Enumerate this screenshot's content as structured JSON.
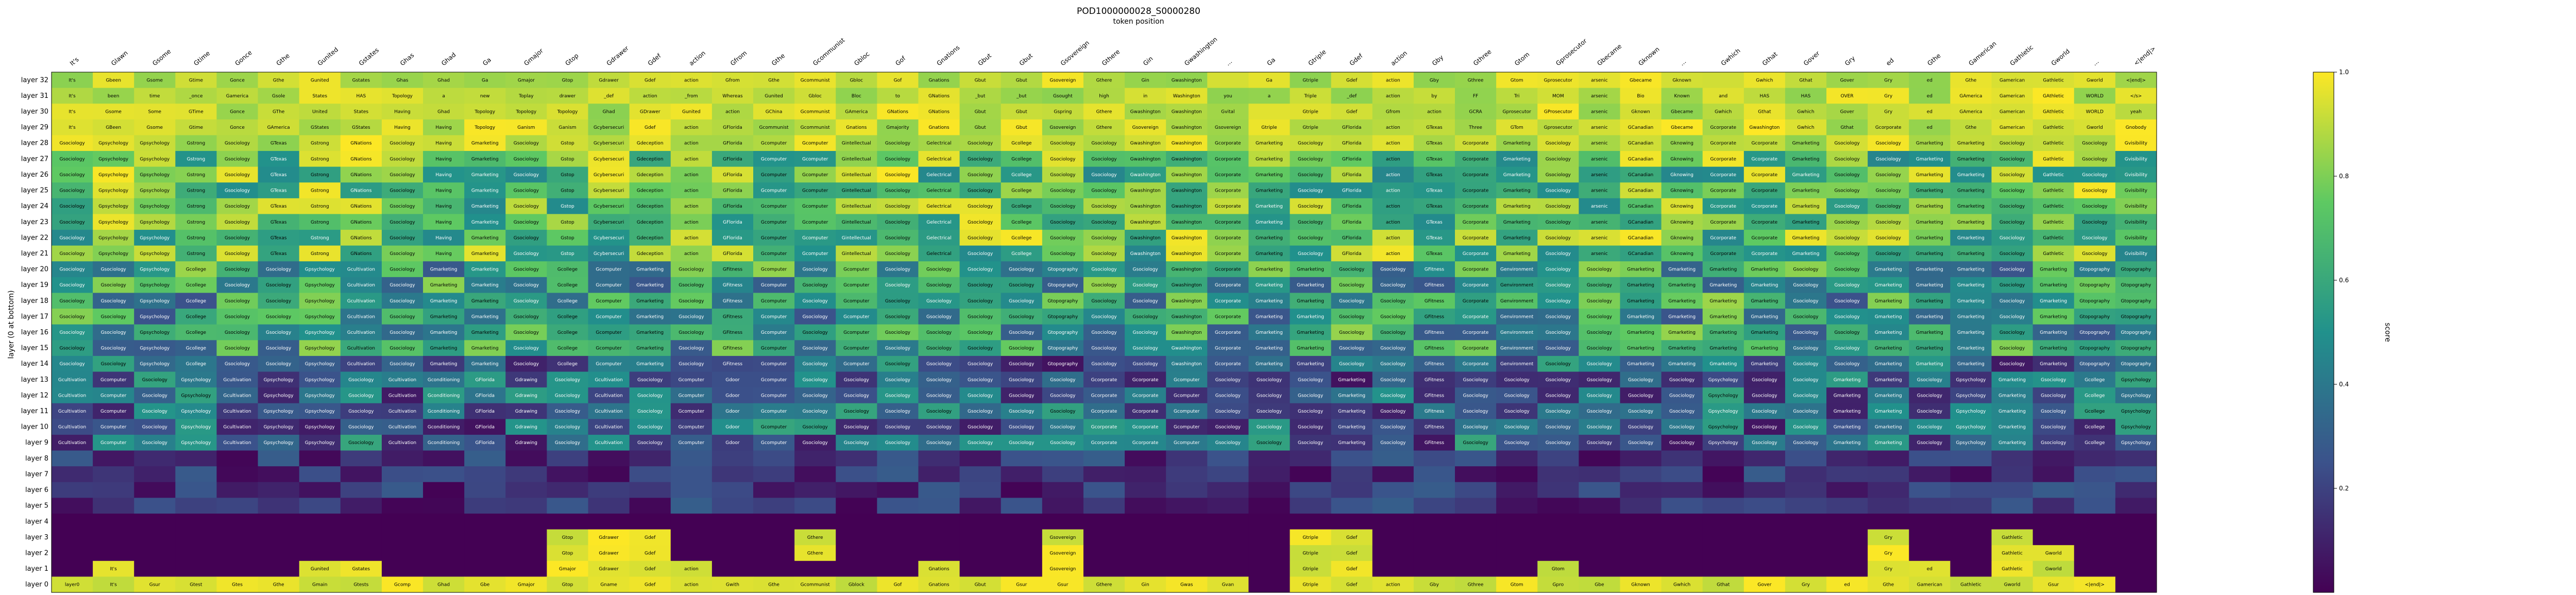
{
  "chart_data": {
    "type": "heatmap",
    "title": "POD1000000028_S0000280",
    "xlabel": "token position",
    "ylabel": "layer (0 at bottom)",
    "colorbar_label": "score",
    "colormap": "viridis",
    "vmin": 0.0,
    "vmax": 1.0,
    "colorbar_ticks": [
      "0.2",
      "0.4",
      "0.6",
      "0.8",
      "1.0"
    ],
    "tokens": [
      "It's",
      "Glawn",
      "Gsome",
      "Gtime",
      "Gonce",
      "Gthe",
      "Gunited",
      "Gstates",
      "Ghas",
      "Ghad",
      "Ga",
      "Gmajor",
      "Gtop",
      "Gdrawer",
      "Gdef",
      "action",
      "Gfrom",
      "Gthe",
      "Gcommunist",
      "Gbloc",
      "Gof",
      "Gnations",
      "Gbut",
      "Gbut",
      "Gsovereign",
      "Gthere",
      "Gin",
      "Gwashington",
      "...",
      "Ga",
      "Gtriple",
      "Gdef",
      "action",
      "Gby",
      "Gthree",
      "Gtom",
      "Gprosecutor",
      "Gbecame",
      "Gknown",
      "...",
      "Gwhich",
      "Gthat",
      "Gover",
      "Gry",
      "ed",
      "Gthe",
      "Gamerican",
      "Gathletic",
      "Gworld",
      "...",
      "<|end|>"
    ],
    "layers": [
      "layer 32",
      "layer 31",
      "layer 30",
      "layer 29",
      "layer 28",
      "layer 27",
      "layer 26",
      "layer 25",
      "layer 24",
      "layer 23",
      "layer 22",
      "layer 21",
      "layer 20",
      "layer 19",
      "layer 18",
      "layer 17",
      "layer 16",
      "layer 15",
      "layer 14",
      "layer 13",
      "layer 12",
      "layer 11",
      "layer 10",
      "layer 9",
      "layer 8",
      "layer 7",
      "layer 6",
      "layer 5",
      "layer 4",
      "layer 3",
      "layer 2",
      "layer 1",
      "layer 0"
    ],
    "top_rows": [
      [
        "It's",
        "Gbeen",
        "Gsome",
        "Gtime",
        "Gonce",
        "Gthe",
        "Gunited",
        "Gstates",
        "Ghas",
        "Ghad",
        "Ga",
        "Gmajor",
        "Gtop",
        "Gdrawer",
        "Gdef",
        "action",
        "Gfrom",
        "Gthe",
        "Gcommunist",
        "Gbloc",
        "Gof",
        "Gnations",
        "Gbut",
        "Gbut",
        "Gsovereign",
        "Gthere",
        "Gin",
        "Gwashington",
        "",
        "Ga",
        "Gtriple",
        "Gdef",
        "action",
        "Gby",
        "Gthree",
        "Gtom",
        "Gprosecutor",
        "arsenic",
        "Gbecame",
        "Gknown",
        "",
        "Gwhich",
        "Gthat",
        "Gover",
        "Gry",
        "ed",
        "Gthe",
        "Gamerican",
        "Gathletic",
        "Gworld",
        "<|end|>"
      ],
      [
        "It's",
        "been",
        "time",
        "_once",
        "Gamerica",
        "Gsole",
        "States",
        "HAS",
        "Topology",
        "a",
        "new",
        "Toplay",
        "drawer",
        "_def",
        "action",
        "_from",
        "Whereas",
        "Gunited",
        "Gbloc",
        "Bloc",
        "to",
        "GNations",
        "_but",
        "_but",
        "Gsought",
        "high",
        "in",
        "Washington",
        "you",
        "a",
        "Triple",
        "_def",
        "action",
        "by",
        "FF",
        "Tri",
        "MOM",
        "arsenic",
        "Bio",
        "Known",
        "and",
        "HAS",
        "HAS",
        "OVER",
        "Gry",
        "ed",
        "GAmerica",
        "Gamerican",
        "GAthletic",
        "WORLD",
        "</s>"
      ],
      [
        "It's",
        "Gsome",
        "Some",
        "GTime",
        "Gonce",
        "GThe",
        "United",
        "States",
        "Having",
        "Ghad",
        "Topology",
        "Topology",
        "Topology",
        "Ghad",
        "GDrawer",
        "Gunited",
        "action",
        "GChina",
        "Gcommunist",
        "GAmerica",
        "GNations",
        "GNations",
        "Gbut",
        "Gbut",
        "Gspring",
        "Gthere",
        "Gwashington",
        "Gwashington",
        "Gvital",
        "",
        "Gtriple",
        "Gdef",
        "Gfrom",
        "action",
        "GCRA",
        "Gprosecutor",
        "GProsecutor",
        "arsenic",
        "Gknown",
        "Gbecame",
        "Gwhich",
        "Gthat",
        "Gwhich",
        "Gover",
        "Gry",
        "ed",
        "GAmerica",
        "Gamerican",
        "GAthletic",
        "WORLD",
        "yeah"
      ],
      [
        "It's",
        "GBeen",
        "Gsome",
        "Gtime",
        "Gonce",
        "GAmerica",
        "GStates",
        "GStates",
        "Having",
        "Having",
        "Topology",
        "Ganism",
        "Ganism",
        "Gcybersecurity",
        "Gdef",
        "action",
        "GFlorida",
        "Gcommunist",
        "Gcommunist",
        "Gnations",
        "Gmajority",
        "Gnations",
        "Gbut",
        "Gbut",
        "Gsovereign",
        "Gthere",
        "Gsovereign",
        "Gwashington",
        "Gsovereign",
        "Gtriple",
        "Gtriple",
        "GFlorida",
        "action",
        "GTexas",
        "Three",
        "GTom",
        "Gprosecutor",
        "arsenic",
        "GCanadian",
        "Gbecame",
        "Gcorporate",
        "Gwashington",
        "Gwhich",
        "Gthat",
        "Gcorporate",
        "ed",
        "Gthe",
        "Gamerican",
        "Gathletic",
        "Gworld",
        "Gnobody"
      ]
    ],
    "mid_pattern": [
      "Gsociology",
      "Gpsychology",
      "Gpsychology",
      "Gstrong",
      "Gsociology",
      "GTexas",
      "Gstrong",
      "GNations",
      "Gsociology",
      "Having",
      "Gmarketing",
      "Gsociology",
      "Gstop",
      "Gcybersecurity",
      "Gdeception",
      "action",
      "GFlorida",
      "Gcomputer",
      "Gcomputer",
      "Gintellectual",
      "Gsociology",
      "Gelectrical",
      "Gsociology",
      "Gcollege",
      "Gsociology",
      "Gsociology",
      "Gwashington",
      "Gwashington",
      "Gcorporate",
      "Gmarketing",
      "Gsociology",
      "GFlorida",
      "action",
      "GTexas",
      "Gcorporate",
      "Gmarketing",
      "Gsociology",
      "arsenic",
      "GCanadian",
      "Gknowing",
      "Gcorporate",
      "Gcorporate",
      "Gmarketing",
      "Gsociology",
      "Gsociology",
      "Gmarketing",
      "Gmarketing",
      "Gsociology",
      "Gathletic",
      "Gsociology",
      "Gvisibility"
    ],
    "low_pattern": [
      "Gsociology",
      "Gsociology",
      "Gpsychology",
      "Gcollege",
      "Gsociology",
      "Gsociology",
      "Gpsychology",
      "Gcultivation",
      "Gsociology",
      "Gmarketing",
      "Gmarketing",
      "Gsociology",
      "Gcollege",
      "Gcomputer",
      "Gmarketing",
      "Gsociology",
      "GFitness",
      "Gcomputer",
      "Gsociology",
      "Gcomputer",
      "Gsociology",
      "Gsociology",
      "Gsociology",
      "Gsociology",
      "Gtopography",
      "Gsociology",
      "Gsociology",
      "Gwashington",
      "Gcorporate",
      "Gmarketing",
      "Gmarketing",
      "Gsociology",
      "Gsociology",
      "GFitness",
      "Gcorporate",
      "Genvironment",
      "Gsociology",
      "Gsociology",
      "Gmarketing",
      "Gmarketing",
      "Gmarketing",
      "Gmarketing",
      "Gsociology",
      "Gsociology",
      "Gmarketing",
      "Gmarketing",
      "Gmarketing",
      "Gsociology",
      "Gmarketing",
      "Gtopography",
      "Gtopography"
    ],
    "deep_pattern": [
      "Gcultivation",
      "Gcomputer",
      "Gsociology",
      "Gpsychology",
      "Gcultivation",
      "Gpsychology",
      "Gpsychology",
      "Gsociology",
      "Gcultivation",
      "Gconditioning",
      "GFlorida",
      "Gdrawing",
      "Gsociology",
      "Gcultivation",
      "Gsociology",
      "Gcomputer",
      "Gdoor",
      "Gcomputer",
      "Gsociology",
      "Gsociology",
      "Gsociology",
      "Gsociology",
      "Gsociology",
      "Gsociology",
      "Gsociology",
      "Gcorporate",
      "Gcorporate",
      "Gcomputer",
      "Gsociology",
      "Gsociology",
      "Gsociology",
      "Gmarketing",
      "Gsociology",
      "GFitness",
      "Gsociology",
      "Gsociology",
      "Gsociology",
      "Gsociology",
      "Gsociology",
      "Gsociology",
      "Gpsychology",
      "Gsociology",
      "Gsociology",
      "Gmarketing",
      "Gmarketing",
      "Gsociology",
      "Gpsychology",
      "Gmarketing",
      "Gsociology",
      "Gcollege",
      "Gpsychology"
    ],
    "bottom_rows": [
      [
        "",
        "",
        "",
        "",
        "",
        "",
        "",
        "",
        "",
        "",
        "",
        "",
        "Gtop",
        "Gdrawer",
        "Gdef",
        "",
        "",
        "",
        "Gthere",
        "",
        "",
        "",
        "",
        "",
        "Gsovereign",
        "",
        "",
        "",
        "",
        "",
        "Gtriple",
        "Gdef",
        "",
        "",
        "",
        "",
        "",
        "",
        "",
        "",
        "",
        "",
        "",
        "",
        "Gry",
        "",
        "",
        "Gathletic",
        "",
        "",
        ""
      ],
      [
        "",
        "",
        "",
        "",
        "",
        "",
        "",
        "",
        "",
        "",
        "",
        "",
        "Gtop",
        "Gdrawer",
        "Gdef",
        "",
        "",
        "",
        "Gthere",
        "",
        "",
        "",
        "",
        "",
        "Gsovereign",
        "",
        "",
        "",
        "",
        "",
        "Gtriple",
        "Gdef",
        "",
        "",
        "",
        "",
        "",
        "",
        "",
        "",
        "",
        "",
        "",
        "",
        "Gry",
        "",
        "",
        "Gathletic",
        "Gworld",
        "",
        ""
      ],
      [
        "",
        "It's",
        "",
        "",
        "",
        "",
        "Gunited",
        "Gstates",
        "",
        "",
        "",
        "",
        "Gmajor",
        "Gdrawer",
        "Gdef",
        "action",
        "",
        "",
        "",
        "",
        "",
        "Gnations",
        "",
        "",
        "Gsovereign",
        "",
        "",
        "",
        "",
        "",
        "Gtriple",
        "Gdef",
        "",
        "",
        "",
        "",
        "Gtom",
        "",
        "",
        "",
        "",
        "",
        "",
        "",
        "Gry",
        "ed",
        "",
        "Gathletic",
        "Gworld",
        "",
        ""
      ],
      [
        "layer0",
        "It's",
        "Gsur",
        "Gtest",
        "Gtes",
        "Gthe",
        "Gmain",
        "Gtests",
        "Gcomp",
        "Ghad",
        "Gbe",
        "Gmajor",
        "Gtop",
        "Gname",
        "Gdef",
        "action",
        "Gwith",
        "Gthe",
        "Gcommunist",
        "Gblock",
        "Gof",
        "Gnations",
        "Gbut",
        "Gsur",
        "Gsur",
        "Gthere",
        "Gin",
        "Gwas",
        "Gvan",
        "",
        "Gtriple",
        "Gdef",
        "action",
        "Gby",
        "Gthree",
        "Gtom",
        "Gpro",
        "Gbe",
        "Gknown",
        "Gwhich",
        "Gthat",
        "Gover",
        "Gry",
        "ed",
        "Gthe",
        "Gamerican",
        "Gathletic",
        "Gworld",
        "Gsur",
        "<|end|>",
        ""
      ]
    ]
  }
}
